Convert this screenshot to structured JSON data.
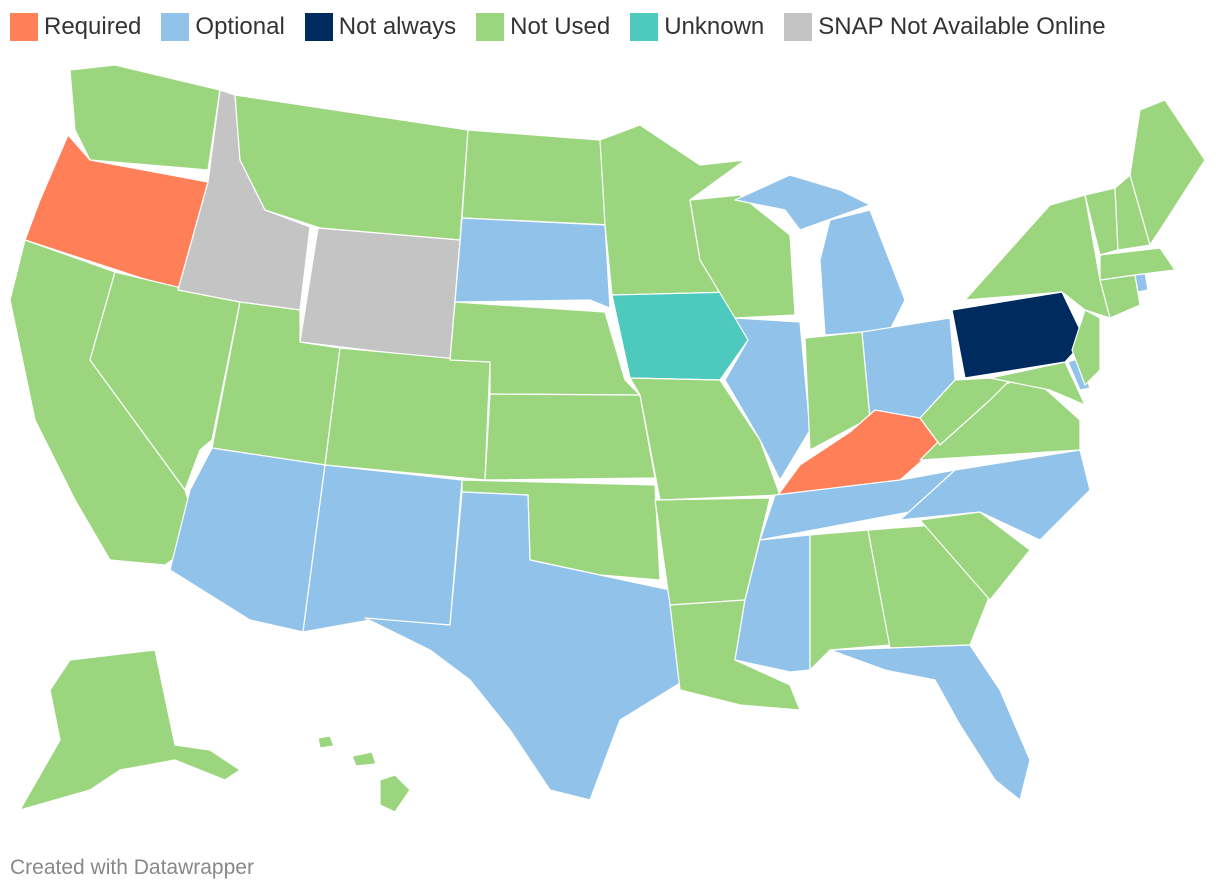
{
  "legend": [
    {
      "key": "required",
      "label": "Required",
      "color": "#ff7f59"
    },
    {
      "key": "optional",
      "label": "Optional",
      "color": "#91c3ea"
    },
    {
      "key": "not_always",
      "label": "Not always",
      "color": "#002b5f"
    },
    {
      "key": "not_used",
      "label": "Not Used",
      "color": "#9bd67f"
    },
    {
      "key": "unknown",
      "label": "Unknown",
      "color": "#4ec9bd"
    },
    {
      "key": "not_online",
      "label": "SNAP Not Available Online",
      "color": "#c4c4c4"
    }
  ],
  "states": [
    {
      "name": "Washington",
      "category": "not_used"
    },
    {
      "name": "Oregon",
      "category": "required"
    },
    {
      "name": "California",
      "category": "not_used"
    },
    {
      "name": "Nevada",
      "category": "not_used"
    },
    {
      "name": "Idaho",
      "category": "not_online"
    },
    {
      "name": "Montana",
      "category": "not_used"
    },
    {
      "name": "Wyoming",
      "category": "not_online"
    },
    {
      "name": "Utah",
      "category": "not_used"
    },
    {
      "name": "Arizona",
      "category": "optional"
    },
    {
      "name": "Colorado",
      "category": "not_used"
    },
    {
      "name": "New Mexico",
      "category": "optional"
    },
    {
      "name": "North Dakota",
      "category": "not_used"
    },
    {
      "name": "South Dakota",
      "category": "optional"
    },
    {
      "name": "Nebraska",
      "category": "not_used"
    },
    {
      "name": "Kansas",
      "category": "not_used"
    },
    {
      "name": "Oklahoma",
      "category": "not_used"
    },
    {
      "name": "Texas",
      "category": "optional"
    },
    {
      "name": "Minnesota",
      "category": "not_used"
    },
    {
      "name": "Iowa",
      "category": "unknown"
    },
    {
      "name": "Missouri",
      "category": "not_used"
    },
    {
      "name": "Arkansas",
      "category": "not_used"
    },
    {
      "name": "Louisiana",
      "category": "not_used"
    },
    {
      "name": "Wisconsin",
      "category": "not_used"
    },
    {
      "name": "Illinois",
      "category": "optional"
    },
    {
      "name": "Michigan",
      "category": "optional"
    },
    {
      "name": "Indiana",
      "category": "not_used"
    },
    {
      "name": "Ohio",
      "category": "optional"
    },
    {
      "name": "Kentucky",
      "category": "required"
    },
    {
      "name": "Tennessee",
      "category": "optional"
    },
    {
      "name": "Mississippi",
      "category": "optional"
    },
    {
      "name": "Alabama",
      "category": "not_used"
    },
    {
      "name": "Georgia",
      "category": "not_used"
    },
    {
      "name": "Florida",
      "category": "optional"
    },
    {
      "name": "South Carolina",
      "category": "not_used"
    },
    {
      "name": "North Carolina",
      "category": "optional"
    },
    {
      "name": "Virginia",
      "category": "not_used"
    },
    {
      "name": "West Virginia",
      "category": "not_used"
    },
    {
      "name": "Maryland",
      "category": "not_used"
    },
    {
      "name": "Delaware",
      "category": "optional"
    },
    {
      "name": "Pennsylvania",
      "category": "not_always"
    },
    {
      "name": "New Jersey",
      "category": "not_used"
    },
    {
      "name": "New York",
      "category": "not_used"
    },
    {
      "name": "Connecticut",
      "category": "not_used"
    },
    {
      "name": "Rhode Island",
      "category": "optional"
    },
    {
      "name": "Massachusetts",
      "category": "not_used"
    },
    {
      "name": "Vermont",
      "category": "not_used"
    },
    {
      "name": "New Hampshire",
      "category": "not_used"
    },
    {
      "name": "Maine",
      "category": "not_used"
    },
    {
      "name": "Alaska",
      "category": "not_used"
    },
    {
      "name": "Hawaii",
      "category": "not_used"
    }
  ],
  "footer": {
    "credit": "Created with Datawrapper"
  }
}
